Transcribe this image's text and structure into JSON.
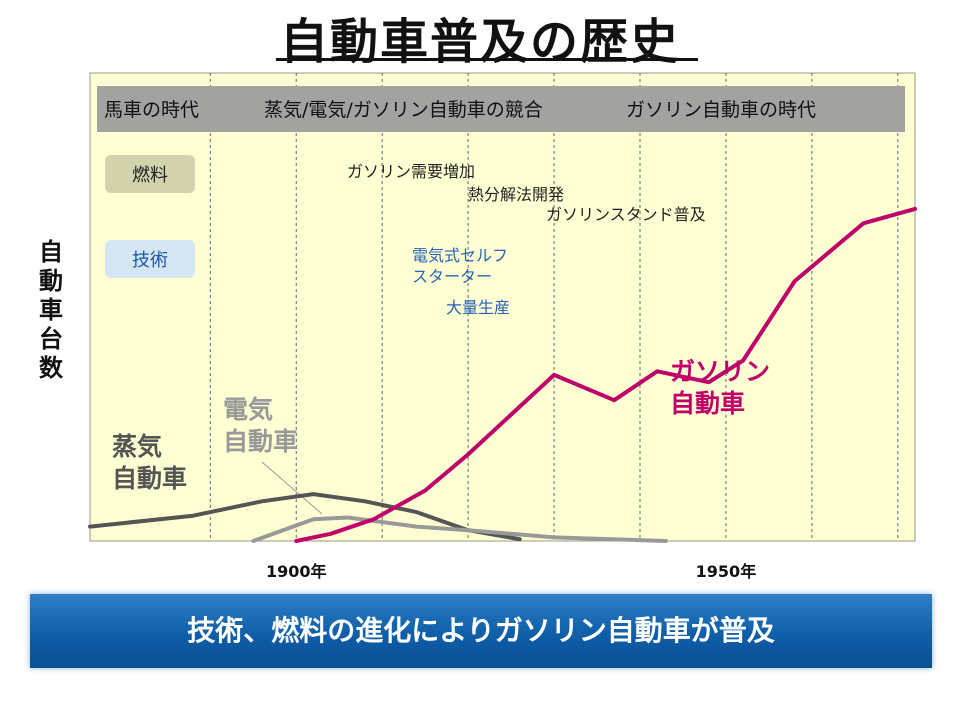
{
  "page": {
    "title": "自動車普及の歴史",
    "banner": "技術、燃料の進化によりガソリン自動車が普及"
  },
  "chart_data": {
    "type": "line",
    "ylabel": "自動車台数",
    "x_ticks": [
      {
        "year": 1900,
        "label": "1900年"
      },
      {
        "year": 1950,
        "label": "1950年"
      }
    ],
    "xlim": [
      1876,
      1972
    ],
    "ylim": [
      0,
      100
    ],
    "grid": "vertical dashed lines",
    "eras": [
      "馬車の時代",
      "蒸気/電気/ガソリン自動車の競合",
      "ガソリン自動車の時代"
    ],
    "row_labels": {
      "fuel": "燃料",
      "tech": "技術"
    },
    "fuel_events": [
      "ガソリン需要増加",
      "熱分解法開発",
      "ガソリンスタンド普及"
    ],
    "tech_events": [
      "電気式セルフ",
      "スターター",
      "大量生産"
    ],
    "series": [
      {
        "name": "蒸気自動車",
        "color": "#555555",
        "points": [
          [
            1876,
            4
          ],
          [
            1888,
            7
          ],
          [
            1896,
            11
          ],
          [
            1902,
            13
          ],
          [
            1908,
            11
          ],
          [
            1914,
            8
          ],
          [
            1920,
            3
          ],
          [
            1926,
            0.5
          ]
        ]
      },
      {
        "name": "電気自動車",
        "color": "#999999",
        "points": [
          [
            1895,
            0
          ],
          [
            1902,
            6
          ],
          [
            1906,
            6.5
          ],
          [
            1914,
            4
          ],
          [
            1920,
            3
          ],
          [
            1930,
            1
          ],
          [
            1943,
            0
          ]
        ]
      },
      {
        "name": "ガソリン自動車",
        "color": "#c0006a",
        "points": [
          [
            1900,
            0
          ],
          [
            1904,
            2
          ],
          [
            1909,
            6
          ],
          [
            1915,
            14
          ],
          [
            1920,
            24
          ],
          [
            1925,
            35
          ],
          [
            1930,
            46
          ],
          [
            1937,
            39
          ],
          [
            1942,
            47
          ],
          [
            1948,
            44
          ],
          [
            1952,
            50
          ],
          [
            1958,
            72
          ],
          [
            1966,
            88
          ],
          [
            1972,
            92
          ]
        ]
      }
    ],
    "curve_labels": [
      {
        "series": 0,
        "lines": [
          "蒸気",
          "自動車"
        ]
      },
      {
        "series": 1,
        "lines": [
          "電気",
          "自動車"
        ]
      },
      {
        "series": 2,
        "lines": [
          "ガソリン",
          "自動車"
        ]
      }
    ]
  }
}
